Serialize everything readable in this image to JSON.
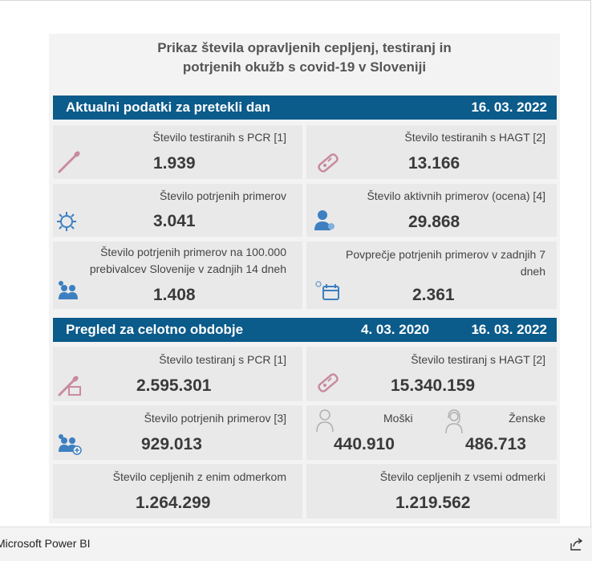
{
  "title": {
    "line1": "Prikaz števila opravljenih cepljenj, testiranj in",
    "line2": "potrjenih okužb s covid-19 v Sloveniji"
  },
  "section1": {
    "header": "Aktualni podatki za pretekli dan",
    "date": "16. 03. 2022",
    "cards": [
      {
        "label": "Število testiranih s PCR [1]",
        "value": "1.939",
        "icon": "pcr-swab-icon"
      },
      {
        "label": "Število testiranih s HAGT [2]",
        "value": "13.166",
        "icon": "rapid-test-icon"
      },
      {
        "label": "Število potrjenih primerov",
        "value": "3.041",
        "icon": "virus-icon"
      },
      {
        "label": "Število aktivnih primerov (ocena) [4]",
        "value": "29.868",
        "icon": "person-virus-icon"
      },
      {
        "label1": "Število potrjenih primerov na 100.000",
        "label2": "prebivalcev Slovenije v zadnjih 14 dneh",
        "value": "1.408",
        "icon": "people-virus-icon"
      },
      {
        "label1": "Povprečje potrjenih primerov v zadnjih 7",
        "label2": "dneh",
        "value": "2.361",
        "icon": "calendar-virus-icon"
      }
    ]
  },
  "section2": {
    "header": "Pregled za celotno obdobje",
    "date_from": "4. 03. 2020",
    "dash": "-",
    "date_to": "16. 03. 2022",
    "cards": [
      {
        "label": "Število testiranj s PCR [1]",
        "value": "2.595.301",
        "icon": "pcr-swab-icon"
      },
      {
        "label": "Število testiranj s HAGT [2]",
        "value": "15.340.159",
        "icon": "rapid-test-icon"
      },
      {
        "label": "Število potrjenih primerov [3]",
        "value": "929.013",
        "icon": "people-plus-icon"
      },
      {
        "label_m": "Moški",
        "value_m": "440.910",
        "label_f": "Ženske",
        "value_f": "486.713",
        "icon_m": "male-icon",
        "icon_f": "female-icon"
      },
      {
        "label": "Število cepljenih z enim odmerkom",
        "value": "1.264.299"
      },
      {
        "label": "Število cepljenih z vsemi odmerki",
        "value": "1.219.562"
      }
    ]
  },
  "footer": {
    "brand": "Microsoft Power BI",
    "share_icon": "share-icon"
  },
  "colors": {
    "band": "#0b5b8b",
    "icon_pink": "#c98aa0",
    "icon_blue": "#3d7fc1",
    "card_bg": "#e9e9e9"
  }
}
